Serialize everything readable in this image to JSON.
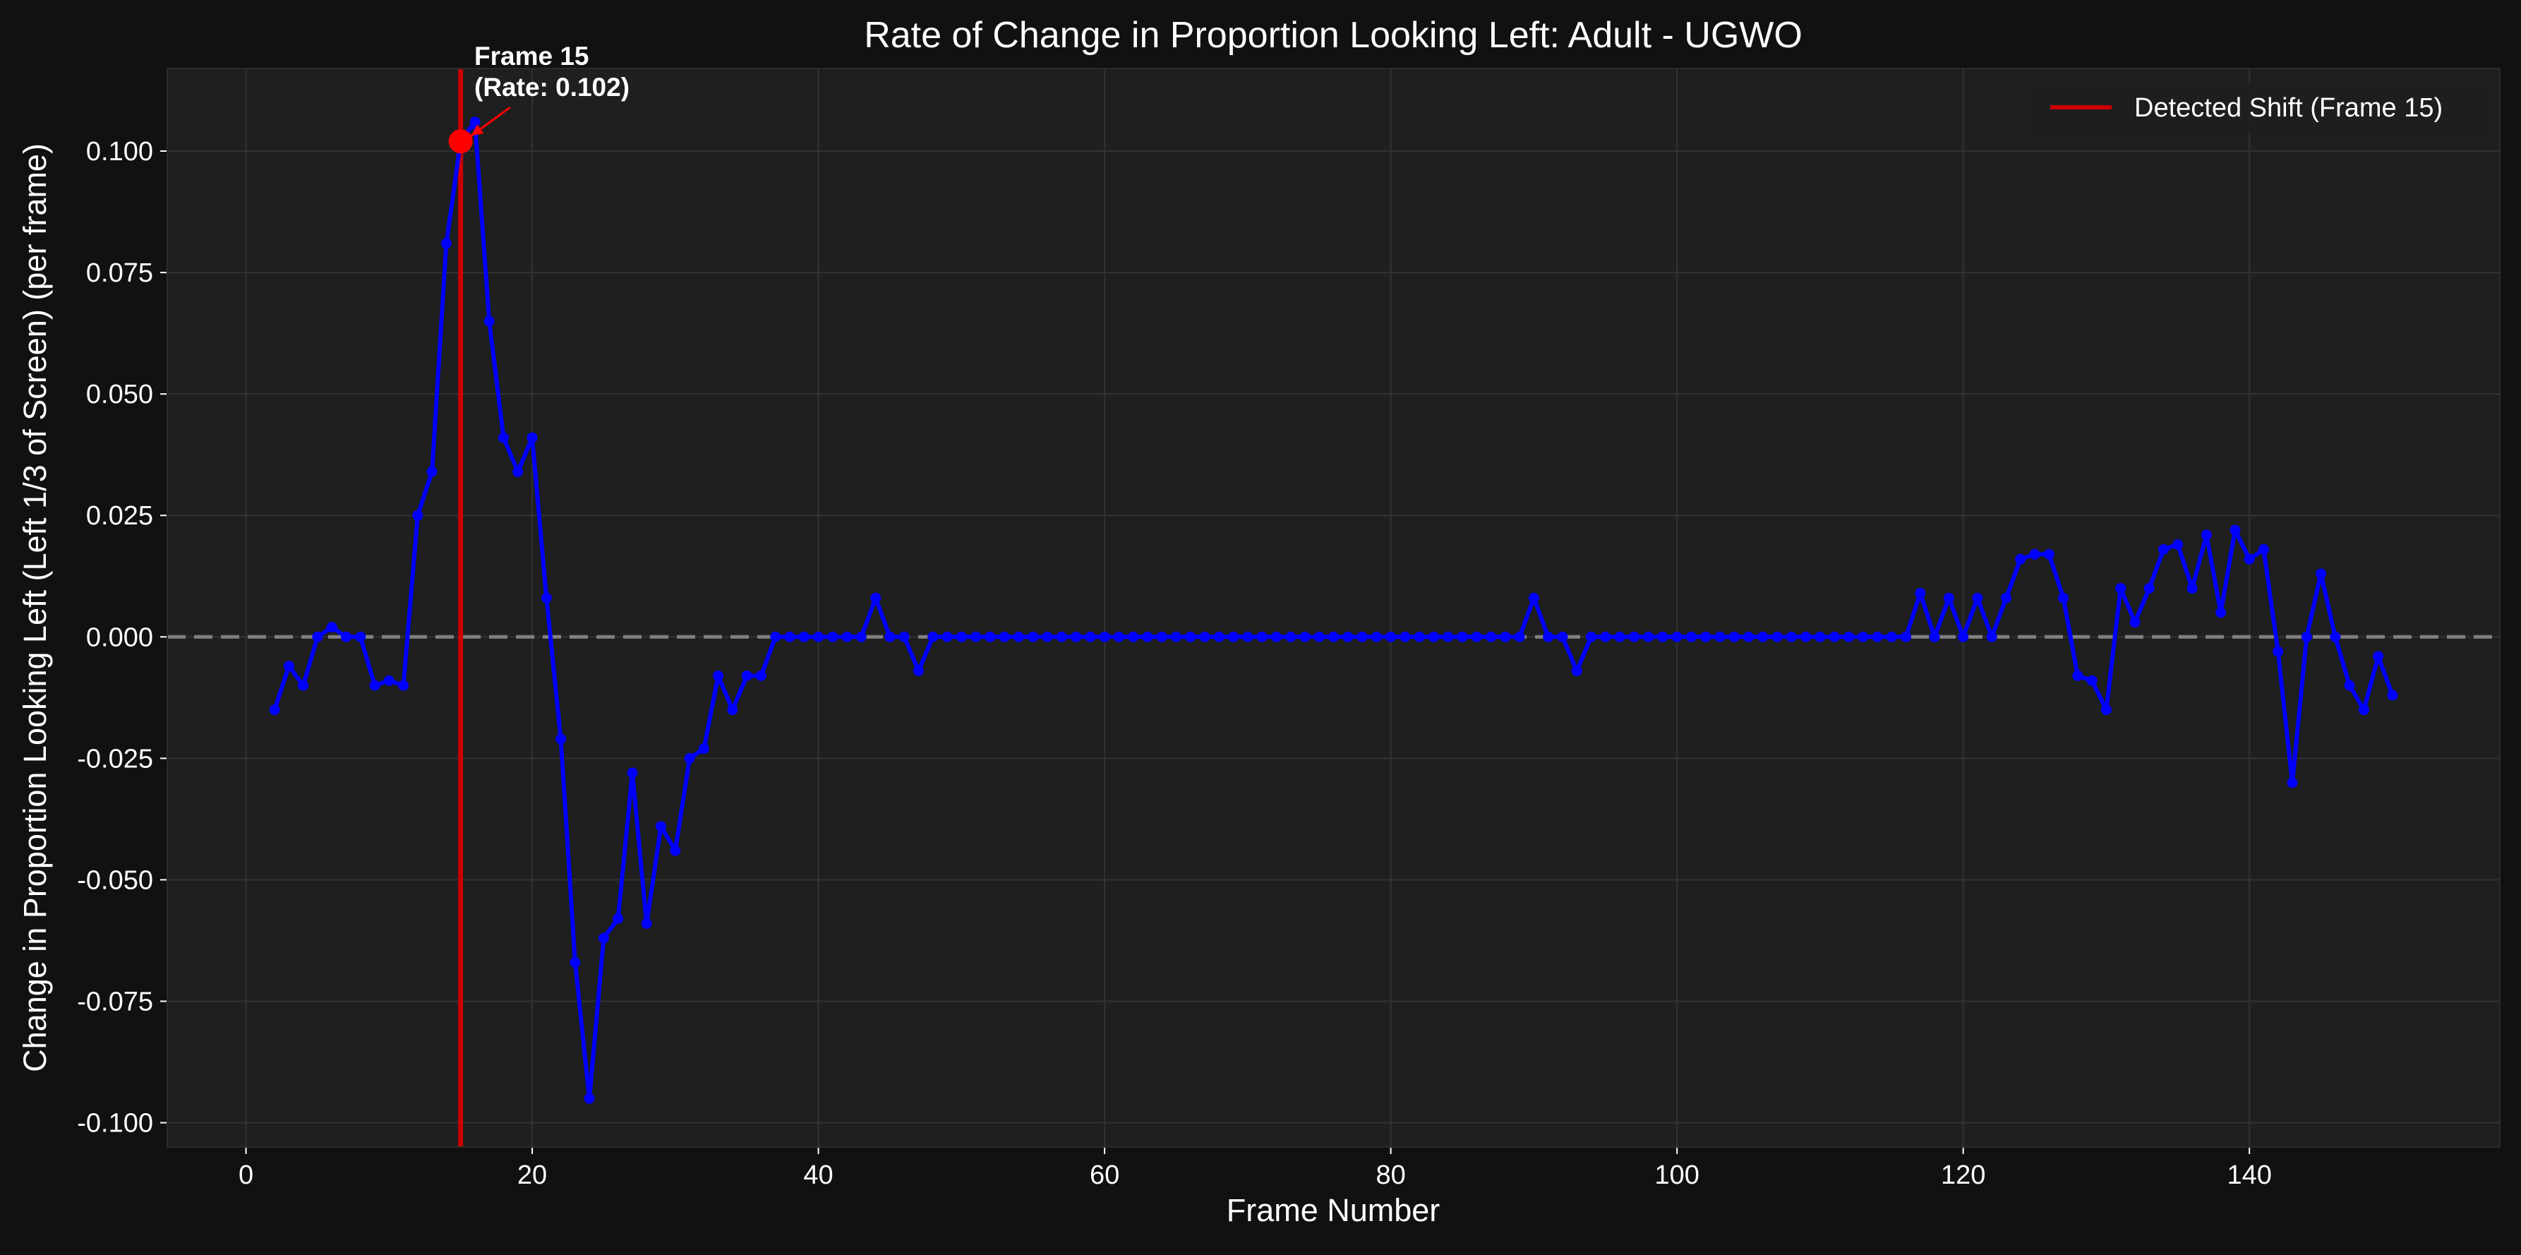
{
  "chart_data": {
    "type": "line",
    "title": "Rate of Change in Proportion Looking Left: Adult - UGWO",
    "xlabel": "Frame Number",
    "ylabel": "Change in Proportion Looking Left (Left 1/3 of Screen) (per frame)",
    "xlim": [
      -5.5,
      157.5
    ],
    "ylim": [
      -0.105,
      0.117
    ],
    "x_ticks": [
      0,
      20,
      40,
      60,
      80,
      100,
      120,
      140
    ],
    "y_ticks": [
      -0.1,
      -0.075,
      -0.05,
      -0.025,
      0.0,
      0.025,
      0.05,
      0.075,
      0.1
    ],
    "x_tick_labels": [
      "0",
      "20",
      "40",
      "60",
      "80",
      "100",
      "120",
      "140"
    ],
    "y_tick_labels": [
      "-0.100",
      "-0.075",
      "-0.050",
      "-0.025",
      "0.000",
      "0.025",
      "0.050",
      "0.075",
      "0.100"
    ],
    "grid": true,
    "legend_position": "top-right",
    "colors": {
      "series": "#0000ff",
      "shift_line": "#cc0000",
      "highlight_point": "#ff0000",
      "zero_line": "#808080",
      "background": "#111111",
      "plot_background": "#1f1f1f",
      "grid": "#333333",
      "text": "#ffffff"
    },
    "series": [
      {
        "x": [
          2,
          3,
          4,
          5,
          6,
          7,
          8,
          9,
          10,
          11,
          12,
          13,
          14,
          15,
          16,
          17,
          18,
          19,
          20,
          21,
          22,
          23,
          24,
          25,
          26,
          27,
          28,
          29,
          30,
          31,
          32,
          33,
          34,
          35,
          36,
          37,
          38,
          39,
          40,
          41,
          42,
          43,
          44,
          45,
          46,
          47,
          48,
          49,
          50,
          51,
          52,
          53,
          54,
          55,
          56,
          57,
          58,
          59,
          60,
          61,
          62,
          63,
          64,
          65,
          66,
          67,
          68,
          69,
          70,
          71,
          72,
          73,
          74,
          75,
          76,
          77,
          78,
          79,
          80,
          81,
          82,
          83,
          84,
          85,
          86,
          87,
          88,
          89,
          90,
          91,
          92,
          93,
          94,
          95,
          96,
          97,
          98,
          99,
          100,
          101,
          102,
          103,
          104,
          105,
          106,
          107,
          108,
          109,
          110,
          111,
          112,
          113,
          114,
          115,
          116,
          117,
          118,
          119,
          120,
          121,
          122,
          123,
          124,
          125,
          126,
          127,
          128,
          129,
          130,
          131,
          132,
          133,
          134,
          135,
          136,
          137,
          138,
          139,
          140,
          141,
          142,
          143,
          144,
          145,
          146,
          147,
          148,
          149,
          150
        ],
        "values": [
          -0.015,
          -0.006,
          -0.01,
          0.0,
          0.002,
          0.0,
          0.0,
          -0.01,
          -0.009,
          -0.01,
          0.025,
          0.034,
          0.081,
          0.102,
          0.106,
          0.065,
          0.041,
          0.034,
          0.041,
          0.008,
          -0.021,
          -0.067,
          -0.095,
          -0.062,
          -0.058,
          -0.028,
          -0.059,
          -0.039,
          -0.044,
          -0.025,
          -0.023,
          -0.008,
          -0.015,
          -0.008,
          -0.008,
          0.0,
          0.0,
          0.0,
          0.0,
          0.0,
          0.0,
          0.0,
          0.008,
          0.0,
          0.0,
          -0.007,
          0.0,
          0.0,
          0.0,
          0.0,
          0.0,
          0.0,
          0.0,
          0.0,
          0.0,
          0.0,
          0.0,
          0.0,
          0.0,
          0.0,
          0.0,
          0.0,
          0.0,
          0.0,
          0.0,
          0.0,
          0.0,
          0.0,
          0.0,
          0.0,
          0.0,
          0.0,
          0.0,
          0.0,
          0.0,
          0.0,
          0.0,
          0.0,
          0.0,
          0.0,
          0.0,
          0.0,
          0.0,
          0.0,
          0.0,
          0.0,
          0.0,
          0.0,
          0.008,
          0.0,
          0.0,
          -0.007,
          0.0,
          0.0,
          0.0,
          0.0,
          0.0,
          0.0,
          0.0,
          0.0,
          0.0,
          0.0,
          0.0,
          0.0,
          0.0,
          0.0,
          0.0,
          0.0,
          0.0,
          0.0,
          0.0,
          0.0,
          0.0,
          0.0,
          0.0,
          0.009,
          0.0,
          0.008,
          0.0,
          0.008,
          0.0,
          0.008,
          0.016,
          0.017,
          0.017,
          0.008,
          -0.008,
          -0.009,
          -0.015,
          0.01,
          0.003,
          0.01,
          0.018,
          0.019,
          0.01,
          0.021,
          0.005,
          0.022,
          0.016,
          0.018,
          -0.003,
          -0.03,
          0.0,
          0.013,
          0.0,
          -0.01,
          -0.015,
          -0.004,
          -0.012
        ]
      }
    ],
    "shift_line": {
      "x": 15,
      "legend_label": "Detected Shift (Frame 15)"
    },
    "zero_line": {
      "y": 0.0
    },
    "annotation": {
      "point": {
        "x": 15,
        "y": 0.102
      },
      "line1": "Frame 15",
      "line2": "(Rate: 0.102)"
    }
  }
}
